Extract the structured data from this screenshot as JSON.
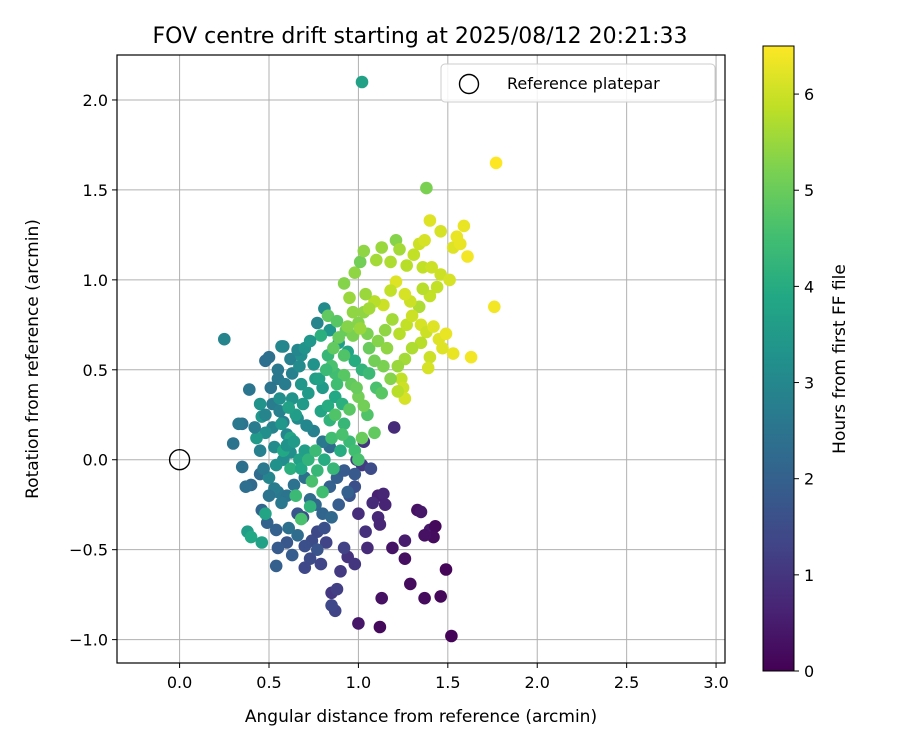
{
  "chart_data": {
    "type": "scatter",
    "title": "FOV centre drift starting at 2025/08/12 20:21:33",
    "xlabel": "Angular distance from reference (arcmin)",
    "ylabel": "Rotation from reference (arcmin)",
    "xlim": [
      -0.35,
      3.05
    ],
    "ylim": [
      -1.13,
      2.25
    ],
    "xticks": [
      0.0,
      0.5,
      1.0,
      1.5,
      2.0,
      2.5,
      3.0
    ],
    "xtick_labels": [
      "0.0",
      "0.5",
      "1.0",
      "1.5",
      "2.0",
      "2.5",
      "3.0"
    ],
    "yticks": [
      -1.0,
      -0.5,
      0.0,
      0.5,
      1.0,
      1.5,
      2.0
    ],
    "ytick_labels": [
      "−1.0",
      "−0.5",
      "0.0",
      "0.5",
      "1.0",
      "1.5",
      "2.0"
    ],
    "grid": true,
    "legend": {
      "label": "Reference platepar",
      "placement": "upper right"
    },
    "reference_point": {
      "x": 0.0,
      "y": 0.0
    },
    "colorbar": {
      "label": "Hours from first FF file",
      "colormap": "viridis",
      "range": [
        0,
        6.5
      ],
      "ticks": [
        0,
        1,
        2,
        3,
        4,
        5,
        6
      ],
      "tick_labels": [
        "0",
        "1",
        "2",
        "3",
        "4",
        "5",
        "6"
      ]
    },
    "points": [
      [
        1.52,
        -0.98,
        0.05
      ],
      [
        1.12,
        -0.93,
        0.15
      ],
      [
        1.0,
        -0.91,
        0.4
      ],
      [
        1.49,
        -0.61,
        0.1
      ],
      [
        1.46,
        -0.76,
        0.12
      ],
      [
        1.37,
        -0.77,
        0.2
      ],
      [
        1.29,
        -0.69,
        0.18
      ],
      [
        1.13,
        -0.77,
        0.3
      ],
      [
        1.26,
        -0.55,
        0.25
      ],
      [
        1.19,
        -0.49,
        0.35
      ],
      [
        1.33,
        -0.28,
        0.3
      ],
      [
        1.35,
        -0.29,
        0.4
      ],
      [
        1.4,
        -0.39,
        0.45
      ],
      [
        1.43,
        -0.37,
        0.15
      ],
      [
        1.42,
        -0.43,
        0.2
      ],
      [
        1.37,
        -0.42,
        0.3
      ],
      [
        1.26,
        -0.45,
        0.5
      ],
      [
        1.11,
        -0.2,
        0.6
      ],
      [
        1.14,
        -0.19,
        0.7
      ],
      [
        1.08,
        -0.24,
        0.8
      ],
      [
        1.15,
        -0.25,
        0.65
      ],
      [
        1.11,
        -0.32,
        0.75
      ],
      [
        1.0,
        -0.3,
        0.85
      ],
      [
        1.04,
        -0.4,
        0.9
      ],
      [
        1.12,
        -0.36,
        0.7
      ],
      [
        1.05,
        -0.49,
        0.8
      ],
      [
        0.94,
        -0.54,
        0.95
      ],
      [
        0.98,
        -0.58,
        1.0
      ],
      [
        0.9,
        -0.62,
        1.1
      ],
      [
        0.85,
        -0.74,
        1.05
      ],
      [
        0.88,
        -0.72,
        1.2
      ],
      [
        0.87,
        -0.84,
        1.3
      ],
      [
        0.85,
        -0.81,
        1.4
      ],
      [
        0.79,
        -0.58,
        1.35
      ],
      [
        0.92,
        -0.49,
        1.25
      ],
      [
        0.82,
        -0.46,
        1.3
      ],
      [
        0.74,
        -0.45,
        1.5
      ],
      [
        0.7,
        -0.48,
        1.6
      ],
      [
        0.77,
        -0.4,
        1.45
      ],
      [
        0.69,
        -0.32,
        1.55
      ],
      [
        0.66,
        -0.3,
        1.7
      ],
      [
        0.6,
        -0.46,
        1.75
      ],
      [
        0.55,
        -0.49,
        1.85
      ],
      [
        0.54,
        -0.59,
        1.95
      ],
      [
        0.63,
        -0.53,
        1.9
      ],
      [
        0.54,
        -0.39,
        2.0
      ],
      [
        0.49,
        -0.35,
        2.05
      ],
      [
        0.46,
        -0.28,
        2.1
      ],
      [
        0.4,
        -0.14,
        2.2
      ],
      [
        0.45,
        -0.08,
        2.3
      ],
      [
        0.37,
        -0.15,
        2.35
      ],
      [
        0.35,
        -0.04,
        2.4
      ],
      [
        0.3,
        0.09,
        2.5
      ],
      [
        0.35,
        0.2,
        2.45
      ],
      [
        0.39,
        0.39,
        2.55
      ],
      [
        0.33,
        0.2,
        2.6
      ],
      [
        0.25,
        0.67,
        2.9
      ],
      [
        0.48,
        0.55,
        2.35
      ],
      [
        0.5,
        0.57,
        2.4
      ],
      [
        0.55,
        0.45,
        2.6
      ],
      [
        0.52,
        0.31,
        2.7
      ],
      [
        0.56,
        0.27,
        2.8
      ],
      [
        0.58,
        0.21,
        2.75
      ],
      [
        0.52,
        0.18,
        2.9
      ],
      [
        0.6,
        0.14,
        3.0
      ],
      [
        0.53,
        0.07,
        3.1
      ],
      [
        0.62,
        0.04,
        3.2
      ],
      [
        0.58,
        0.0,
        3.15
      ],
      [
        0.54,
        -0.03,
        3.25
      ],
      [
        0.5,
        -0.1,
        2.95
      ],
      [
        0.55,
        -0.18,
        2.6
      ],
      [
        0.6,
        -0.2,
        2.5
      ],
      [
        0.64,
        -0.14,
        2.45
      ],
      [
        0.7,
        -0.1,
        2.4
      ],
      [
        0.73,
        -0.22,
        2.3
      ],
      [
        0.76,
        -0.25,
        2.2
      ],
      [
        0.8,
        -0.3,
        2.1
      ],
      [
        0.84,
        -0.15,
        2.0
      ],
      [
        0.88,
        -0.1,
        1.95
      ],
      [
        0.92,
        -0.06,
        1.85
      ],
      [
        0.95,
        -0.2,
        1.7
      ],
      [
        0.98,
        -0.15,
        1.6
      ],
      [
        1.02,
        -0.03,
        1.1
      ],
      [
        0.99,
        0.0,
        1.2
      ],
      [
        1.03,
        0.1,
        1.0
      ],
      [
        0.84,
        0.07,
        2.3
      ],
      [
        0.8,
        0.1,
        2.6
      ],
      [
        0.75,
        0.16,
        2.8
      ],
      [
        0.71,
        0.19,
        3.0
      ],
      [
        0.66,
        0.23,
        3.1
      ],
      [
        0.63,
        0.34,
        3.3
      ],
      [
        0.68,
        0.42,
        3.4
      ],
      [
        0.72,
        0.37,
        3.5
      ],
      [
        0.76,
        0.45,
        3.6
      ],
      [
        0.8,
        0.4,
        3.5
      ],
      [
        0.62,
        0.56,
        2.8
      ],
      [
        0.58,
        0.63,
        2.9
      ],
      [
        0.68,
        0.58,
        3.2
      ],
      [
        0.66,
        0.61,
        3.0
      ],
      [
        0.75,
        0.53,
        3.3
      ],
      [
        0.78,
        0.45,
        3.7
      ],
      [
        0.79,
        0.27,
        3.8
      ],
      [
        0.83,
        0.3,
        4.0
      ],
      [
        0.87,
        0.35,
        3.9
      ],
      [
        0.91,
        0.31,
        4.1
      ],
      [
        0.84,
        0.22,
        4.2
      ],
      [
        0.92,
        0.2,
        4.3
      ],
      [
        0.95,
        0.1,
        4.4
      ],
      [
        0.98,
        0.05,
        4.5
      ],
      [
        1.0,
        0.0,
        4.6
      ],
      [
        0.9,
        0.05,
        4.0
      ],
      [
        0.86,
        -0.05,
        4.3
      ],
      [
        0.8,
        -0.18,
        4.5
      ],
      [
        0.73,
        -0.26,
        4.2
      ],
      [
        0.68,
        -0.33,
        4.6
      ],
      [
        0.65,
        -0.2,
        4.4
      ],
      [
        0.62,
        -0.05,
        4.1
      ],
      [
        0.58,
        0.05,
        3.9
      ],
      [
        0.62,
        0.12,
        3.8
      ],
      [
        0.67,
        0.0,
        3.7
      ],
      [
        0.7,
        0.05,
        3.6
      ],
      [
        0.56,
        0.34,
        3.2
      ],
      [
        0.45,
        0.31,
        3.3
      ],
      [
        0.46,
        0.24,
        3.4
      ],
      [
        0.48,
        0.15,
        3.2
      ],
      [
        0.43,
        0.12,
        3.5
      ],
      [
        0.38,
        -0.4,
        3.6
      ],
      [
        0.4,
        -0.43,
        3.9
      ],
      [
        0.46,
        -0.46,
        3.7
      ],
      [
        0.48,
        -0.3,
        3.8
      ],
      [
        0.57,
        0.63,
        3.0
      ],
      [
        0.77,
        0.76,
        2.9
      ],
      [
        0.81,
        0.84,
        3.1
      ],
      [
        0.84,
        0.72,
        3.4
      ],
      [
        0.89,
        0.65,
        3.6
      ],
      [
        0.94,
        0.6,
        3.8
      ],
      [
        0.98,
        0.55,
        4.0
      ],
      [
        1.02,
        0.5,
        4.2
      ],
      [
        1.06,
        0.48,
        4.4
      ],
      [
        1.1,
        0.4,
        4.6
      ],
      [
        1.13,
        0.37,
        4.8
      ],
      [
        1.05,
        0.25,
        4.7
      ],
      [
        1.09,
        0.15,
        4.9
      ],
      [
        1.02,
        0.12,
        5.0
      ],
      [
        1.0,
        0.35,
        5.1
      ],
      [
        0.96,
        0.42,
        4.9
      ],
      [
        0.92,
        0.58,
        4.7
      ],
      [
        0.87,
        0.48,
        4.5
      ],
      [
        0.83,
        0.58,
        4.3
      ],
      [
        0.79,
        0.69,
        4.1
      ],
      [
        0.83,
        0.8,
        4.9
      ],
      [
        0.88,
        0.77,
        4.8
      ],
      [
        0.93,
        0.72,
        5.0
      ],
      [
        0.97,
        0.69,
        5.2
      ],
      [
        1.0,
        0.76,
        5.3
      ],
      [
        1.03,
        0.82,
        5.4
      ],
      [
        0.95,
        0.9,
        5.5
      ],
      [
        0.92,
        0.98,
        5.3
      ],
      [
        0.98,
        1.04,
        5.4
      ],
      [
        1.01,
        1.1,
        5.1
      ],
      [
        1.03,
        1.16,
        5.4
      ],
      [
        1.1,
        1.11,
        5.6
      ],
      [
        1.13,
        1.18,
        5.5
      ],
      [
        1.18,
        1.1,
        5.7
      ],
      [
        1.21,
        1.22,
        5.3
      ],
      [
        1.23,
        1.17,
        5.6
      ],
      [
        1.27,
        1.08,
        5.8
      ],
      [
        1.31,
        1.14,
        5.9
      ],
      [
        1.34,
        1.2,
        6.0
      ],
      [
        1.37,
        1.22,
        6.1
      ],
      [
        1.36,
        1.07,
        5.9
      ],
      [
        1.41,
        1.07,
        6.0
      ],
      [
        1.4,
        1.33,
        6.2
      ],
      [
        1.46,
        1.27,
        6.1
      ],
      [
        1.53,
        1.18,
        6.2
      ],
      [
        1.55,
        1.24,
        6.3
      ],
      [
        1.57,
        1.2,
        6.3
      ],
      [
        1.59,
        1.3,
        6.3
      ],
      [
        1.61,
        1.13,
        6.4
      ],
      [
        1.76,
        0.85,
        6.4
      ],
      [
        1.77,
        1.65,
        6.5
      ],
      [
        1.38,
        1.51,
        5.2
      ],
      [
        1.46,
        1.03,
        6.0
      ],
      [
        1.51,
        1.0,
        6.1
      ],
      [
        1.44,
        0.96,
        5.9
      ],
      [
        1.4,
        0.91,
        5.9
      ],
      [
        1.36,
        0.95,
        5.8
      ],
      [
        1.34,
        0.85,
        5.7
      ],
      [
        1.29,
        0.88,
        6.0
      ],
      [
        1.26,
        0.92,
        6.1
      ],
      [
        1.21,
        0.99,
        6.2
      ],
      [
        1.18,
        0.94,
        5.9
      ],
      [
        1.14,
        0.86,
        6.0
      ],
      [
        1.09,
        0.88,
        5.8
      ],
      [
        1.06,
        0.84,
        5.6
      ],
      [
        1.04,
        0.92,
        5.5
      ],
      [
        1.15,
        0.72,
        5.4
      ],
      [
        1.19,
        0.78,
        5.6
      ],
      [
        1.23,
        0.7,
        5.8
      ],
      [
        1.27,
        0.75,
        5.9
      ],
      [
        1.3,
        0.8,
        6.0
      ],
      [
        1.35,
        0.75,
        6.1
      ],
      [
        1.38,
        0.71,
        6.0
      ],
      [
        1.42,
        0.74,
        6.2
      ],
      [
        1.45,
        0.67,
        6.2
      ],
      [
        1.49,
        0.7,
        6.3
      ],
      [
        1.53,
        0.59,
        6.3
      ],
      [
        1.63,
        0.57,
        6.4
      ],
      [
        1.47,
        0.62,
        6.2
      ],
      [
        1.4,
        0.57,
        6.0
      ],
      [
        1.39,
        0.51,
        6.1
      ],
      [
        1.35,
        0.65,
        5.8
      ],
      [
        1.3,
        0.62,
        5.7
      ],
      [
        1.26,
        0.56,
        5.6
      ],
      [
        1.22,
        0.52,
        5.5
      ],
      [
        1.24,
        0.45,
        5.9
      ],
      [
        1.25,
        0.4,
        6.0
      ],
      [
        1.26,
        0.34,
        6.1
      ],
      [
        1.22,
        0.38,
        5.8
      ],
      [
        1.18,
        0.45,
        5.3
      ],
      [
        1.14,
        0.52,
        5.2
      ],
      [
        1.09,
        0.55,
        5.1
      ],
      [
        1.06,
        0.62,
        5.0
      ],
      [
        1.11,
        0.66,
        5.3
      ],
      [
        1.16,
        0.62,
        5.4
      ],
      [
        1.05,
        0.7,
        5.2
      ],
      [
        1.01,
        0.73,
        5.5
      ],
      [
        0.97,
        0.82,
        5.4
      ],
      [
        0.94,
        0.74,
        5.3
      ],
      [
        0.89,
        0.68,
        5.0
      ],
      [
        0.86,
        0.62,
        4.9
      ],
      [
        0.92,
        0.47,
        4.8
      ],
      [
        0.88,
        0.42,
        4.5
      ],
      [
        0.85,
        0.52,
        4.6
      ],
      [
        0.82,
        0.5,
        4.4
      ],
      [
        1.02,
        2.1,
        3.7
      ],
      [
        1.2,
        0.18,
        0.8
      ],
      [
        1.07,
        -0.05,
        1.5
      ],
      [
        0.98,
        -0.08,
        1.8
      ],
      [
        0.94,
        -0.18,
        2.0
      ],
      [
        0.89,
        -0.25,
        1.9
      ],
      [
        0.85,
        -0.32,
        2.2
      ],
      [
        0.81,
        -0.38,
        1.6
      ],
      [
        0.77,
        -0.5,
        1.7
      ],
      [
        0.73,
        -0.55,
        1.5
      ],
      [
        0.7,
        -0.6,
        1.4
      ],
      [
        0.66,
        -0.42,
        2.3
      ],
      [
        0.61,
        -0.38,
        2.4
      ],
      [
        0.57,
        -0.24,
        2.6
      ],
      [
        0.53,
        -0.16,
        2.7
      ],
      [
        0.5,
        -0.2,
        2.5
      ],
      [
        0.47,
        -0.05,
        2.6
      ],
      [
        0.45,
        0.05,
        2.8
      ],
      [
        0.42,
        0.18,
        2.7
      ],
      [
        0.48,
        0.25,
        2.9
      ],
      [
        0.51,
        0.4,
        2.5
      ],
      [
        0.55,
        0.5,
        2.6
      ],
      [
        0.59,
        0.42,
        2.7
      ],
      [
        0.63,
        0.48,
        2.8
      ],
      [
        0.67,
        0.52,
        3.1
      ],
      [
        0.7,
        0.62,
        3.3
      ],
      [
        0.73,
        0.66,
        3.4
      ],
      [
        0.69,
        0.31,
        3.5
      ],
      [
        0.65,
        0.25,
        3.6
      ],
      [
        0.61,
        0.29,
        3.7
      ],
      [
        0.57,
        0.2,
        3.4
      ],
      [
        0.6,
        0.08,
        3.3
      ],
      [
        0.64,
        0.1,
        3.5
      ],
      [
        0.68,
        -0.05,
        3.9
      ],
      [
        0.72,
        0.0,
        4.2
      ],
      [
        0.76,
        0.05,
        4.4
      ],
      [
        0.74,
        -0.12,
        4.6
      ],
      [
        0.77,
        -0.06,
        4.3
      ],
      [
        0.81,
        0.0,
        4.0
      ],
      [
        0.85,
        0.12,
        4.5
      ],
      [
        0.87,
        0.25,
        4.7
      ],
      [
        0.91,
        0.14,
        4.6
      ],
      [
        0.95,
        0.28,
        4.8
      ],
      [
        0.99,
        0.4,
        5.0
      ],
      [
        1.03,
        0.3,
        5.1
      ]
    ]
  }
}
